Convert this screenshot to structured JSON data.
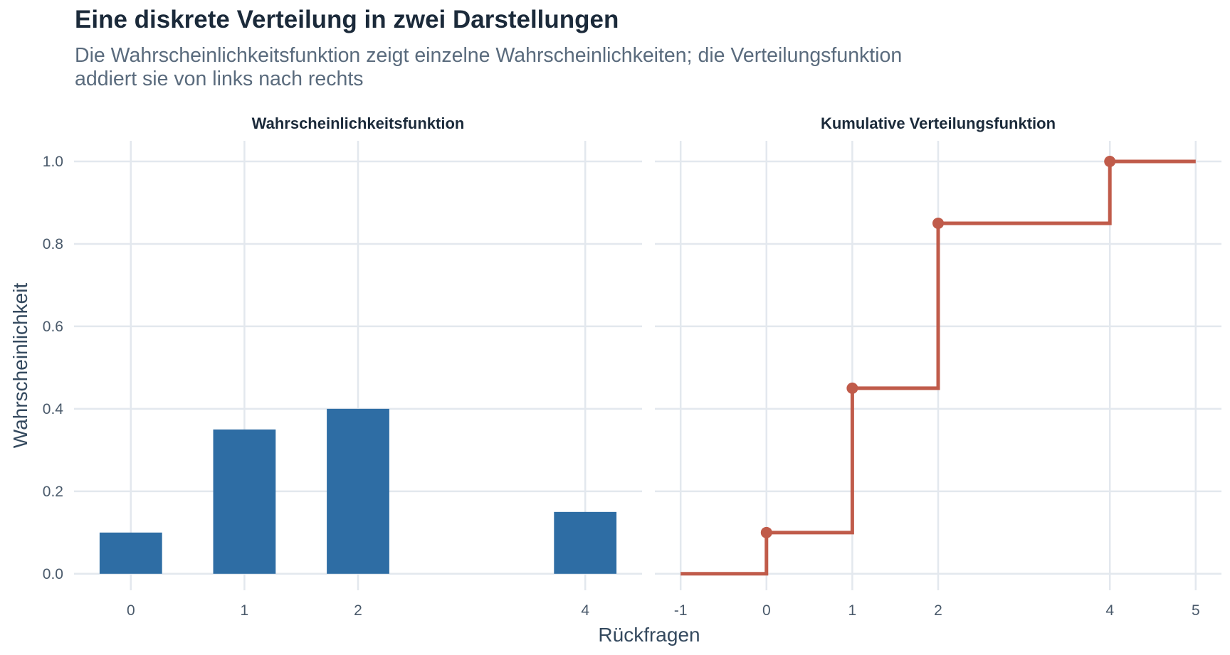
{
  "title": "Eine diskrete Verteilung in zwei Darstellungen",
  "subtitle": "Die Wahrscheinlichkeitsfunktion zeigt einzelne Wahrscheinlichkeiten; die Verteilungsfunktion addiert sie von links nach rechts",
  "colors": {
    "bars": "#2e6da4",
    "step": "#c05b4a",
    "grid": "#e3e8ee",
    "text": "#1b2a3a"
  },
  "chart_data": [
    {
      "type": "bar",
      "panel_title": "Wahrscheinlichkeitsfunktion",
      "x": [
        0,
        1,
        2,
        4
      ],
      "values": [
        0.1,
        0.35,
        0.4,
        0.15
      ],
      "x_ticks": [
        "0",
        "1",
        "2",
        "4"
      ],
      "y_ticks": [
        "0.0",
        "0.2",
        "0.4",
        "0.6",
        "0.8",
        "1.0"
      ],
      "xlim": [
        -0.5,
        4.5
      ],
      "ylim": [
        -0.04,
        1.05
      ],
      "grid": true
    },
    {
      "type": "line",
      "style": "step",
      "panel_title": "Kumulative Verteilungsfunktion",
      "x": [
        -1,
        0,
        1,
        2,
        4,
        5
      ],
      "values": [
        0.0,
        0.1,
        0.45,
        0.85,
        1.0,
        1.0
      ],
      "points": [
        [
          0,
          0.1
        ],
        [
          1,
          0.45
        ],
        [
          2,
          0.85
        ],
        [
          4,
          1.0
        ]
      ],
      "x_ticks": [
        "-1",
        "0",
        "1",
        "2",
        "4",
        "5"
      ],
      "xlim": [
        -1.3,
        5.3
      ],
      "ylim": [
        -0.04,
        1.05
      ],
      "grid": true
    }
  ],
  "xlabel": "Rückfragen",
  "ylabel": "Wahrscheinlichkeit"
}
